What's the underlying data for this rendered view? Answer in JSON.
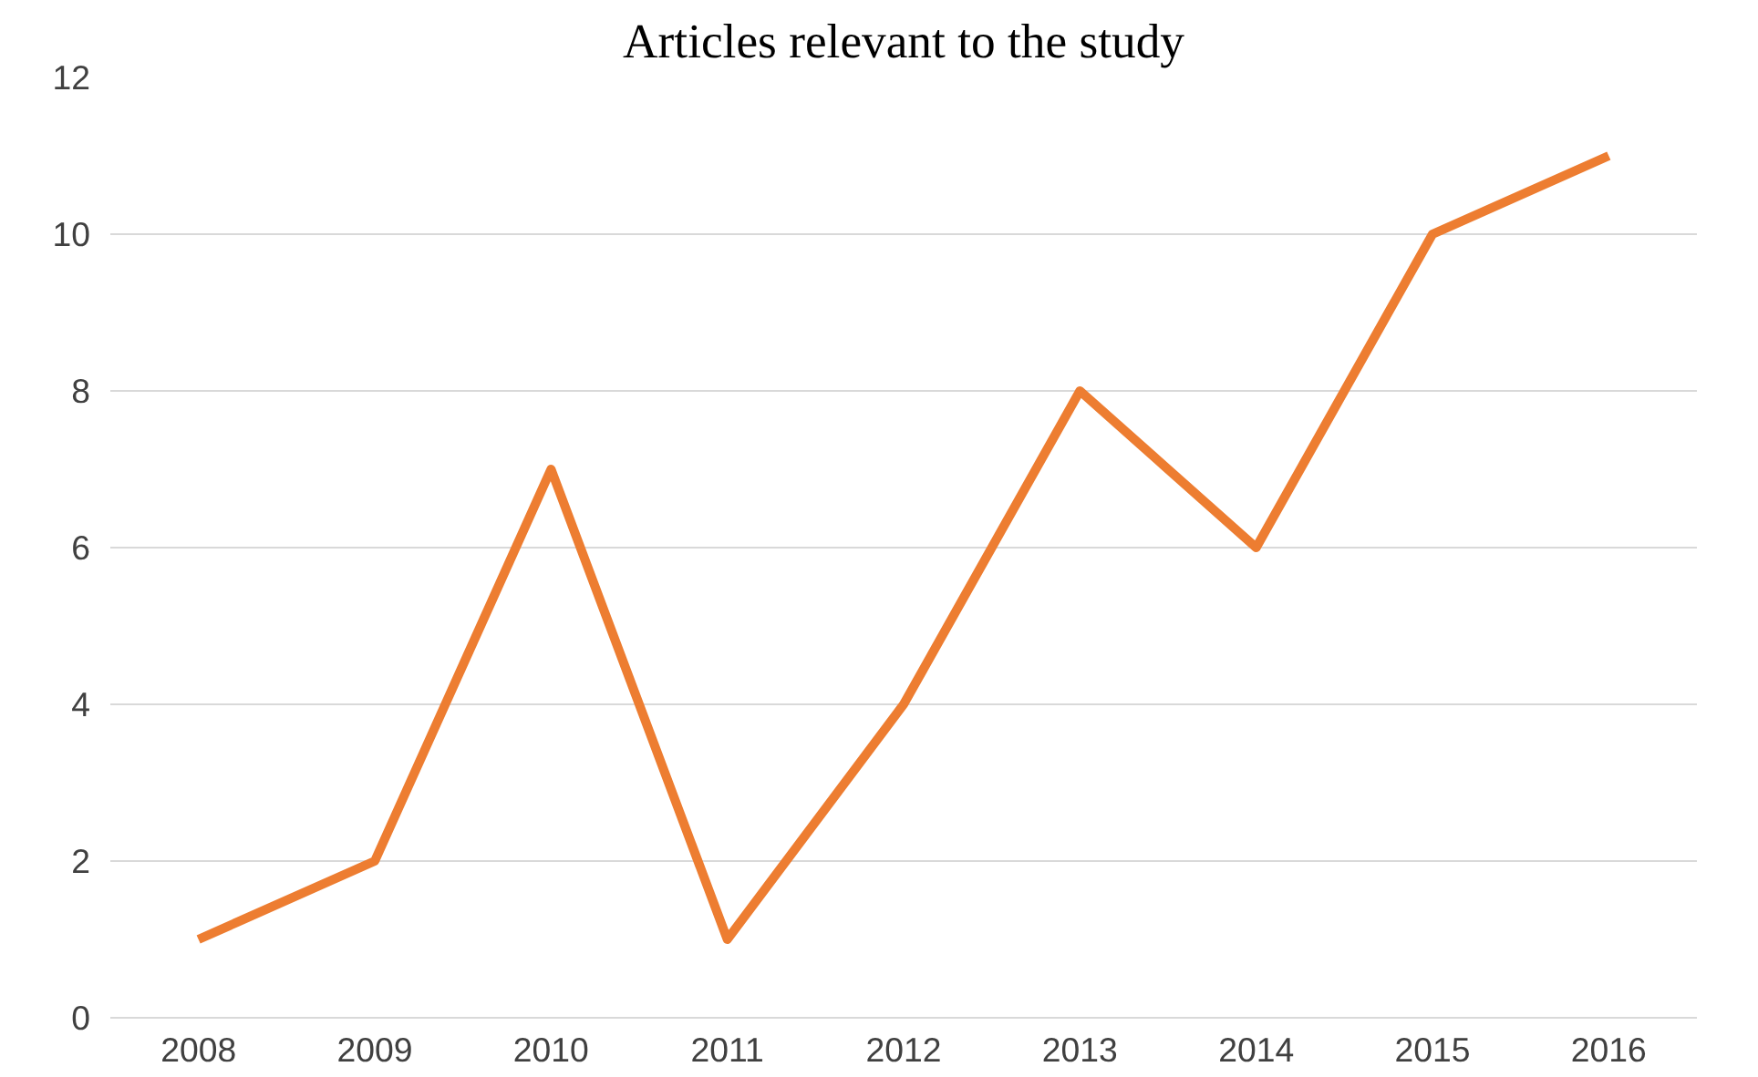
{
  "chart_data": {
    "type": "line",
    "title": "Articles relevant to the study",
    "categories": [
      "2008",
      "2009",
      "2010",
      "2011",
      "2012",
      "2013",
      "2014",
      "2015",
      "2016"
    ],
    "series": [
      {
        "color": "#ed7d31",
        "values": [
          1,
          2,
          7,
          1,
          4,
          8,
          6,
          10,
          11
        ]
      }
    ],
    "ylim": [
      0,
      12
    ],
    "yticks": [
      0,
      2,
      4,
      6,
      8,
      10,
      12
    ],
    "grid": "y",
    "marker": "none",
    "line_style": "solid"
  }
}
